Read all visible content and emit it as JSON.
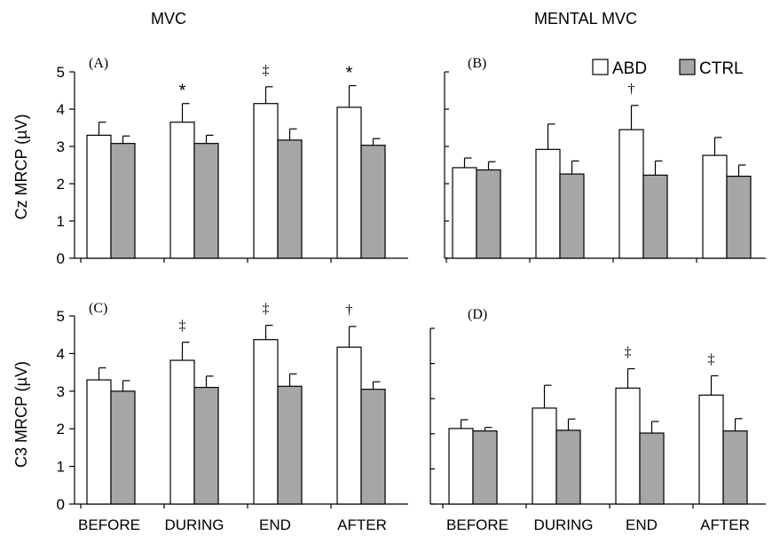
{
  "column_titles": [
    "MVC",
    "MENTAL MVC"
  ],
  "y_labels": [
    "Cz MRCP (µV)",
    "C3 MRCP (µV)"
  ],
  "legend": {
    "abd": "ABD",
    "ctrl": "CTRL"
  },
  "colors": {
    "abd": "#ffffff",
    "ctrl": "#a6a6a6",
    "stroke": "#000000"
  },
  "chart_data": [
    {
      "type": "bar",
      "panel_label": "(A)",
      "categories": [
        "BEFORE",
        "DURING",
        "END",
        "AFTER"
      ],
      "ylim": [
        0,
        5
      ],
      "yticks": [
        "0",
        "1",
        "2",
        "3",
        "4",
        "5"
      ],
      "grid": false,
      "series": [
        {
          "name": "ABD",
          "values": [
            3.3,
            3.65,
            4.15,
            4.05
          ],
          "errors": [
            0.35,
            0.5,
            0.45,
            0.58
          ]
        },
        {
          "name": "CTRL",
          "values": [
            3.08,
            3.08,
            3.17,
            3.03
          ],
          "errors": [
            0.2,
            0.22,
            0.3,
            0.18
          ]
        }
      ],
      "annotations": [
        "",
        "*",
        "‡",
        "*"
      ]
    },
    {
      "type": "bar",
      "panel_label": "(B)",
      "categories": [
        "BEFORE",
        "DURING",
        "END",
        "AFTER"
      ],
      "ylim": [
        0,
        5
      ],
      "yticks": [],
      "grid": false,
      "legend_position": "top-right",
      "series": [
        {
          "name": "ABD",
          "values": [
            2.43,
            2.92,
            3.45,
            2.76
          ],
          "errors": [
            0.26,
            0.68,
            0.65,
            0.48
          ]
        },
        {
          "name": "CTRL",
          "values": [
            2.37,
            2.26,
            2.23,
            2.2
          ],
          "errors": [
            0.22,
            0.35,
            0.38,
            0.3
          ]
        }
      ],
      "annotations": [
        "",
        "",
        "†",
        ""
      ]
    },
    {
      "type": "bar",
      "panel_label": "(C)",
      "categories": [
        "BEFORE",
        "DURING",
        "END",
        "AFTER"
      ],
      "ylim": [
        0,
        5
      ],
      "yticks": [
        "0",
        "1",
        "2",
        "3",
        "4",
        "5"
      ],
      "grid": false,
      "series": [
        {
          "name": "ABD",
          "values": [
            3.3,
            3.82,
            4.37,
            4.17
          ],
          "errors": [
            0.32,
            0.48,
            0.38,
            0.55
          ]
        },
        {
          "name": "CTRL",
          "values": [
            3.0,
            3.1,
            3.13,
            3.05
          ],
          "errors": [
            0.28,
            0.3,
            0.33,
            0.2
          ]
        }
      ],
      "annotations": [
        "",
        "‡",
        "‡",
        "†"
      ]
    },
    {
      "type": "bar",
      "panel_label": "(D)",
      "categories": [
        "BEFORE",
        "DURING",
        "END",
        "AFTER"
      ],
      "ylim": [
        0,
        5
      ],
      "yticks": [],
      "grid": false,
      "series": [
        {
          "name": "ABD",
          "values": [
            2.15,
            2.73,
            3.3,
            3.1
          ],
          "errors": [
            0.25,
            0.65,
            0.55,
            0.55
          ]
        },
        {
          "name": "CTRL",
          "values": [
            2.08,
            2.1,
            2.02,
            2.08
          ],
          "errors": [
            0.1,
            0.32,
            0.33,
            0.35
          ]
        }
      ],
      "annotations": [
        "",
        "",
        "‡",
        "‡"
      ]
    }
  ]
}
